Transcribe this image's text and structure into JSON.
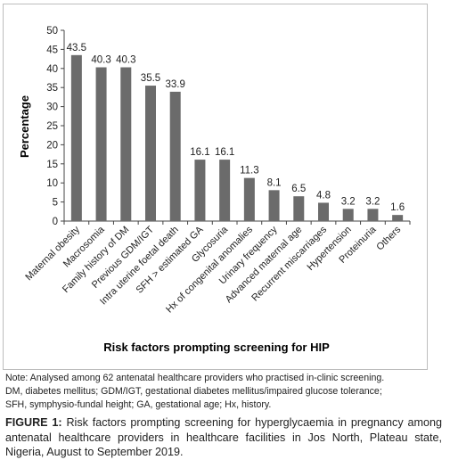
{
  "chart_data": {
    "type": "bar",
    "categories": [
      "Maternal obesity",
      "Macrosomia",
      "Family history of DM",
      "Previous GDM/IGT",
      "Intra uterine foetal death",
      "SFH > estimated GA",
      "Glycosuria",
      "Hx of congenital anomalies",
      "Urinary frequency",
      "Advanced maternal age",
      "Recurrent miscarriages",
      "Hypertension",
      "Proteinuria",
      "Others"
    ],
    "values": [
      43.5,
      40.3,
      40.3,
      35.5,
      33.9,
      16.1,
      16.1,
      11.3,
      8.1,
      6.5,
      4.8,
      3.2,
      3.2,
      1.6
    ],
    "data_labels": [
      "43.5",
      "40.3",
      "40.3",
      "35.5",
      "33.9",
      "16.1",
      "16.1",
      "11.3",
      "8.1",
      "6.5",
      "4.8",
      "3.2",
      "3.2",
      "1.6"
    ],
    "xlabel": "Risk factors prompting screening for HIP",
    "ylabel": "Percentage",
    "ylim": [
      0,
      50
    ],
    "yticks": [
      0,
      5,
      10,
      15,
      20,
      25,
      30,
      35,
      40,
      45,
      50
    ],
    "bar_color": "#6b6b6b",
    "grid": false,
    "legend": "none"
  },
  "note": {
    "line1": "Note: Analysed among 62 antenatal healthcare providers who practised in-clinic screening.",
    "line2": "DM, diabetes mellitus; GDM/IGT, gestational diabetes mellitus/impaired glucose tolerance;",
    "line3": "SFH, symphysio-fundal height; GA, gestational age; Hx, history."
  },
  "caption": {
    "label": "FIGURE 1:",
    "text": " Risk factors prompting screening for hyperglycaemia in pregnancy among antenatal healthcare providers in healthcare facilities in Jos North, Plateau state, Nigeria, August to September 2019."
  }
}
